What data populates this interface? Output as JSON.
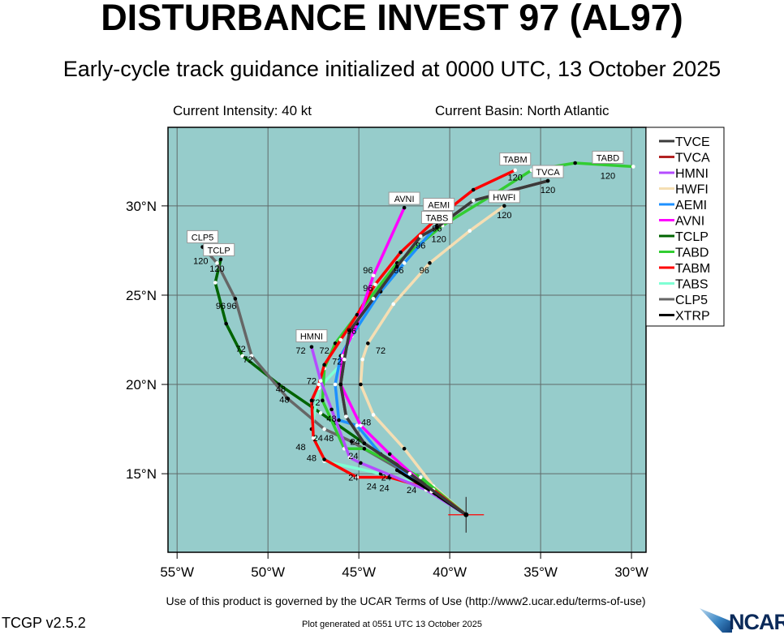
{
  "header": {
    "title": "DISTURBANCE INVEST 97 (AL97)",
    "subtitle": "Early-cycle track guidance initialized at 0000 UTC, 13 October 2025",
    "current_intensity": "Current Intensity: 40 kt",
    "current_basin": "Current Basin: North Atlantic"
  },
  "footer": {
    "terms": "Use of this product is governed by the UCAR Terms of Use (http://www2.ucar.edu/terms-of-use)",
    "version": "TCGP v2.5.2",
    "generated": "Plot generated at 0551 UTC   13 October 2025",
    "logo_text": "NCAR"
  },
  "colors": {
    "ocean": "#96cccb",
    "grid": "#606a6a",
    "initial_marker": "#ff0000"
  },
  "chart_data": {
    "type": "line",
    "title": "DISTURBANCE INVEST 97 (AL97)",
    "xlabel": "",
    "ylabel": "",
    "xlim": [
      -55.5,
      -29.2
    ],
    "ylim": [
      10.6,
      34.4
    ],
    "grid": true,
    "legend_placement": "right",
    "x_ticks": [
      {
        "value": -55,
        "label": "55°W"
      },
      {
        "value": -50,
        "label": "50°W"
      },
      {
        "value": -45,
        "label": "45°W"
      },
      {
        "value": -40,
        "label": "40°W"
      },
      {
        "value": -35,
        "label": "35°W"
      },
      {
        "value": -30,
        "label": "30°W"
      }
    ],
    "y_ticks": [
      {
        "value": 15,
        "label": "15°N"
      },
      {
        "value": 20,
        "label": "20°N"
      },
      {
        "value": 25,
        "label": "25°N"
      },
      {
        "value": 30,
        "label": "30°N"
      }
    ],
    "initial_position": {
      "lon": -39.1,
      "lat": 12.7
    },
    "series": [
      {
        "name": "HWFI",
        "color": "#f5deb3",
        "points": [
          [
            -39.1,
            12.7
          ],
          [
            -40.9,
            14.3
          ],
          [
            -42.5,
            16.4
          ],
          [
            -44.2,
            18.3
          ],
          [
            -44.9,
            20.0
          ],
          [
            -44.8,
            21.4
          ],
          [
            -44.5,
            22.3
          ],
          [
            -43.1,
            24.5
          ],
          [
            -41.1,
            26.8
          ],
          [
            -38.9,
            28.6
          ],
          [
            -37.0,
            30.0
          ]
        ]
      },
      {
        "name": "TCLP",
        "color": "#006400",
        "points": [
          [
            -39.1,
            12.7
          ],
          [
            -41.8,
            14.8
          ],
          [
            -44.7,
            16.7
          ],
          [
            -47.1,
            18.4
          ],
          [
            -49.4,
            20.0
          ],
          [
            -51.4,
            21.6
          ],
          [
            -52.3,
            23.4
          ],
          [
            -52.9,
            25.7
          ],
          [
            -52.6,
            27.0
          ]
        ]
      },
      {
        "name": "CLP5",
        "color": "#666666",
        "points": [
          [
            -39.1,
            12.7
          ],
          [
            -42.0,
            14.8
          ],
          [
            -45.4,
            16.8
          ],
          [
            -46.9,
            17.5
          ],
          [
            -48.9,
            19.2
          ],
          [
            -50.9,
            21.6
          ],
          [
            -51.8,
            24.8
          ],
          [
            -52.8,
            26.8
          ],
          [
            -53.6,
            27.7
          ]
        ]
      },
      {
        "name": "TABS",
        "color": "#7fffd4",
        "points": [
          [
            -39.1,
            12.7
          ],
          [
            -41.1,
            14.3
          ],
          [
            -43.8,
            15.0
          ],
          [
            -46.9,
            15.7
          ],
          [
            -47.6,
            17.5
          ],
          [
            -47.2,
            19.8
          ],
          [
            -46.0,
            21.1
          ],
          [
            -45.4,
            22.7
          ],
          [
            -43.8,
            25.2
          ],
          [
            -42.5,
            26.8
          ],
          [
            -40.7,
            28.9
          ]
        ]
      },
      {
        "name": "TABD",
        "color": "#32cd32",
        "points": [
          [
            -39.1,
            12.7
          ],
          [
            -41.6,
            14.8
          ],
          [
            -44.7,
            16.4
          ],
          [
            -45.8,
            16.4
          ],
          [
            -47.0,
            19.1
          ],
          [
            -46.9,
            20.9
          ],
          [
            -46.3,
            22.3
          ],
          [
            -45.1,
            23.9
          ],
          [
            -42.9,
            26.8
          ],
          [
            -40.4,
            28.9
          ],
          [
            -37.5,
            30.7
          ],
          [
            -35.5,
            32.0
          ],
          [
            -33.1,
            32.4
          ],
          [
            -29.9,
            32.2
          ]
        ]
      },
      {
        "name": "TABM",
        "color": "#ff0000",
        "points": [
          [
            -39.1,
            12.7
          ],
          [
            -40.9,
            14.1
          ],
          [
            -43.3,
            14.8
          ],
          [
            -45.1,
            14.8
          ],
          [
            -46.9,
            15.8
          ],
          [
            -47.5,
            17.0
          ],
          [
            -47.6,
            19.1
          ],
          [
            -47.2,
            20.0
          ],
          [
            -46.9,
            21.1
          ],
          [
            -46.0,
            22.5
          ],
          [
            -45.1,
            23.9
          ],
          [
            -44.1,
            25.6
          ],
          [
            -42.7,
            27.4
          ],
          [
            -40.7,
            29.3
          ],
          [
            -38.7,
            30.9
          ],
          [
            -36.4,
            32.0
          ]
        ]
      },
      {
        "name": "HMNI",
        "color": "#b54cff",
        "points": [
          [
            -39.1,
            12.7
          ],
          [
            -41.3,
            14.1
          ],
          [
            -44.9,
            15.6
          ],
          [
            -45.5,
            15.9
          ],
          [
            -46.5,
            18.6
          ],
          [
            -47.1,
            20.2
          ],
          [
            -47.6,
            22.1
          ]
        ]
      },
      {
        "name": "AEMI",
        "color": "#1e90ff",
        "points": [
          [
            -39.1,
            12.7
          ],
          [
            -40.7,
            13.8
          ],
          [
            -43.8,
            16.1
          ],
          [
            -45.1,
            17.7
          ],
          [
            -46.1,
            18.0
          ],
          [
            -46.3,
            20.0
          ],
          [
            -46.0,
            21.6
          ],
          [
            -45.4,
            22.7
          ],
          [
            -43.8,
            25.2
          ],
          [
            -42.5,
            26.8
          ],
          [
            -40.7,
            28.9
          ]
        ]
      },
      {
        "name": "AVNI",
        "color": "#ff00ff",
        "points": [
          [
            -39.1,
            12.7
          ],
          [
            -41.1,
            14.1
          ],
          [
            -43.3,
            16.1
          ],
          [
            -44.9,
            17.7
          ],
          [
            -46.0,
            20.0
          ],
          [
            -45.9,
            21.6
          ],
          [
            -45.1,
            23.4
          ],
          [
            -44.2,
            26.1
          ],
          [
            -42.5,
            29.9
          ]
        ]
      },
      {
        "name": "TVCA",
        "color": "#b22222",
        "points": [
          [
            -39.1,
            12.7
          ],
          [
            -42.2,
            15.0
          ],
          [
            -44.7,
            16.7
          ],
          [
            -45.7,
            18.2
          ],
          [
            -46.0,
            20.0
          ],
          [
            -45.8,
            21.4
          ],
          [
            -45.5,
            23.0
          ],
          [
            -44.2,
            24.8
          ],
          [
            -42.9,
            26.6
          ],
          [
            -41.6,
            28.3
          ],
          [
            -40.7,
            28.8
          ],
          [
            -38.7,
            30.3
          ],
          [
            -34.6,
            31.4
          ]
        ]
      },
      {
        "name": "XTRP",
        "color": "#000000",
        "points": [
          [
            -39.1,
            12.7
          ],
          [
            -41.0,
            14.0
          ],
          [
            -42.9,
            15.2
          ]
        ]
      },
      {
        "name": "TVCE",
        "color": "#3a3a3a",
        "points": [
          [
            -39.1,
            12.7
          ],
          [
            -42.2,
            15.0
          ],
          [
            -44.7,
            16.7
          ],
          [
            -45.7,
            18.2
          ],
          [
            -46.0,
            20.0
          ],
          [
            -45.8,
            21.4
          ],
          [
            -45.5,
            23.0
          ],
          [
            -44.2,
            24.8
          ],
          [
            -42.9,
            26.6
          ],
          [
            -41.6,
            28.3
          ],
          [
            -40.7,
            28.8
          ],
          [
            -38.7,
            30.3
          ],
          [
            -34.6,
            31.4
          ]
        ]
      }
    ],
    "legend": [
      "TVCE",
      "TVCA",
      "HMNI",
      "HWFI",
      "AEMI",
      "AVNI",
      "TCLP",
      "TABD",
      "TABM",
      "TABS",
      "CLP5",
      "XTRP"
    ],
    "model_labels": [
      {
        "text": "TABM",
        "lon": -36.4,
        "lat": 32.6
      },
      {
        "text": "TVCA",
        "lon": -34.6,
        "lat": 31.9
      },
      {
        "text": "TABD",
        "lon": -31.3,
        "lat": 32.7
      },
      {
        "text": "HWFI",
        "lon": -37.0,
        "lat": 30.5
      },
      {
        "text": "AVNI",
        "lon": -42.5,
        "lat": 30.4
      },
      {
        "text": "AEMI",
        "lon": -40.6,
        "lat": 29.8
      },
      {
        "text": "TABS",
        "lon": -40.7,
        "lat": 29.2
      },
      {
        "text": "HMNI",
        "lon": -47.6,
        "lat": 22.7
      },
      {
        "text": "CLP5",
        "lon": -53.6,
        "lat": 28.1
      },
      {
        "text": "TCLP",
        "lon": -52.7,
        "lat": 27.5
      }
    ],
    "hour_labels": [
      {
        "text": "120",
        "lon": -36.4,
        "lat": 31.6
      },
      {
        "text": "120",
        "lon": -34.6,
        "lat": 30.9
      },
      {
        "text": "120",
        "lon": -31.3,
        "lat": 31.7
      },
      {
        "text": "120",
        "lon": -37.0,
        "lat": 29.5
      },
      {
        "text": "120",
        "lon": -40.6,
        "lat": 28.4
      },
      {
        "text": "120",
        "lon": -53.7,
        "lat": 27.1
      },
      {
        "text": "120",
        "lon": -52.8,
        "lat": 26.5
      },
      {
        "text": "96",
        "lon": -40.7,
        "lat": 28.9
      },
      {
        "text": "96",
        "lon": -52.6,
        "lat": 24.4
      },
      {
        "text": "96",
        "lon": -52.0,
        "lat": 24.4
      },
      {
        "text": "96",
        "lon": -44.5,
        "lat": 26.4
      },
      {
        "text": "96",
        "lon": -42.8,
        "lat": 26.4
      },
      {
        "text": "96",
        "lon": -41.4,
        "lat": 26.4
      },
      {
        "text": "96",
        "lon": -44.5,
        "lat": 25.4
      },
      {
        "text": "96",
        "lon": -41.6,
        "lat": 27.8
      },
      {
        "text": "96",
        "lon": -45.4,
        "lat": 23.0
      },
      {
        "text": "72",
        "lon": -51.5,
        "lat": 22.0
      },
      {
        "text": "72",
        "lon": -51.1,
        "lat": 21.4
      },
      {
        "text": "72",
        "lon": -48.2,
        "lat": 21.9
      },
      {
        "text": "72",
        "lon": -46.9,
        "lat": 21.9
      },
      {
        "text": "72",
        "lon": -43.8,
        "lat": 21.9
      },
      {
        "text": "72",
        "lon": -47.6,
        "lat": 20.2
      },
      {
        "text": "72",
        "lon": -47.4,
        "lat": 19.0
      },
      {
        "text": "72",
        "lon": -46.2,
        "lat": 21.3
      },
      {
        "text": "48",
        "lon": -49.3,
        "lat": 19.6
      },
      {
        "text": "48",
        "lon": -49.1,
        "lat": 19.3
      },
      {
        "text": "48",
        "lon": -44.6,
        "lat": 17.9
      },
      {
        "text": "48",
        "lon": -48.2,
        "lat": 16.5
      },
      {
        "text": "48",
        "lon": -47.6,
        "lat": 15.9
      },
      {
        "text": "48",
        "lon": -46.5,
        "lat": 18.1
      },
      {
        "text": "48",
        "lon": -46.8,
        "lat": 17.0
      },
      {
        "text": "24",
        "lon": -45.3,
        "lat": 14.8
      },
      {
        "text": "24",
        "lon": -44.3,
        "lat": 14.3
      },
      {
        "text": "24",
        "lon": -43.6,
        "lat": 14.2
      },
      {
        "text": "24",
        "lon": -45.3,
        "lat": 16.0
      },
      {
        "text": "24",
        "lon": -45.2,
        "lat": 16.8
      },
      {
        "text": "24",
        "lon": -42.1,
        "lat": 14.1
      },
      {
        "text": "24",
        "lon": -43.5,
        "lat": 14.8
      },
      {
        "text": "24",
        "lon": -47.1,
        "lat": 17.0
      }
    ]
  }
}
